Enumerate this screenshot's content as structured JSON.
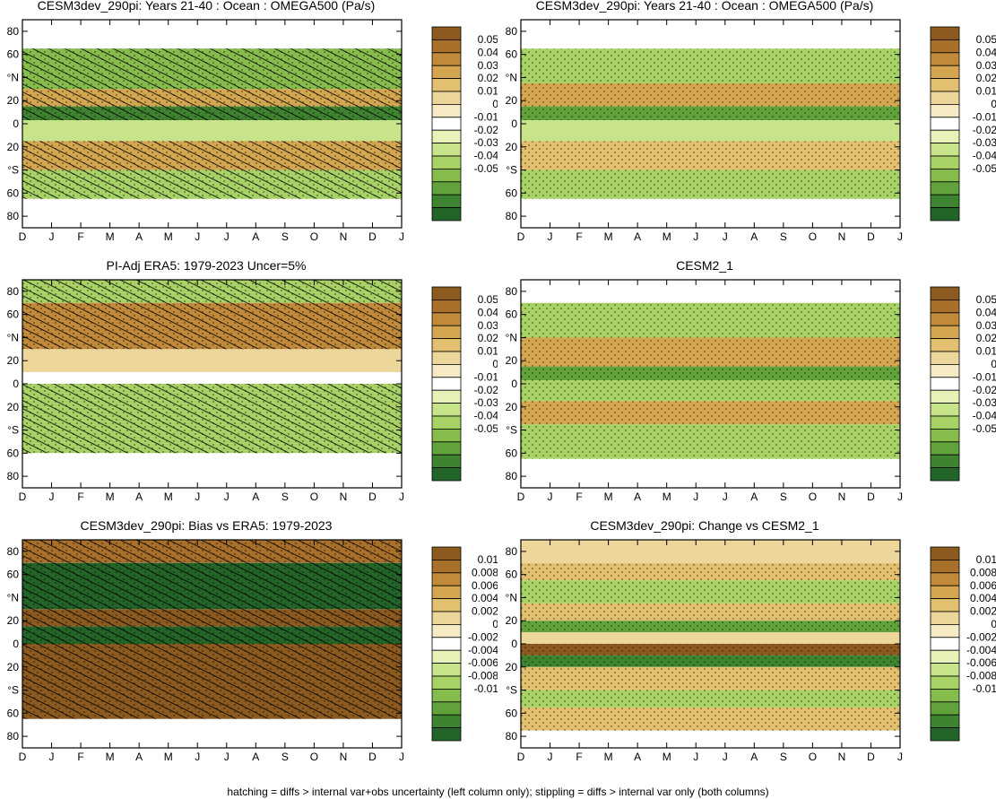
{
  "footnote": "hatching = diffs > internal var+obs uncertainty (left column only); stippling = diffs > internal var only (both columns)",
  "colors": {
    "brown_scale": [
      "#8c5a1e",
      "#a8702a",
      "#c08a3a",
      "#d4a650",
      "#e2c070",
      "#ecd69a",
      "#f5eac4"
    ],
    "zero": "#ffffff",
    "green_scale": [
      "#e6f2b8",
      "#c8e48a",
      "#a8d266",
      "#86bc4c",
      "#62a23a",
      "#3e8430",
      "#236428"
    ]
  },
  "chart_data": [
    {
      "type": "heatmap",
      "title": "CESM3dev_290pi: Years 21-40 : Ocean : OMEGA500 (Pa/s)",
      "x_tick_labels": [
        "D",
        "J",
        "F",
        "M",
        "A",
        "M",
        "J",
        "J",
        "A",
        "S",
        "O",
        "N",
        "D",
        "J"
      ],
      "y_tick_labels": [
        "80",
        "60",
        "°N",
        "20",
        "0",
        "20",
        "°S",
        "60",
        "80"
      ],
      "colorbar_labels": [
        "0.05",
        "0.04",
        "0.03",
        "0.02",
        "0.01",
        "0",
        "-0.01",
        "-0.02",
        "-0.03",
        "-0.04",
        "-0.05"
      ],
      "hatching": true,
      "bands": [
        {
          "lat": [
            65,
            90
          ],
          "value": 0.0
        },
        {
          "lat": [
            30,
            65
          ],
          "value": -0.025
        },
        {
          "lat": [
            15,
            30
          ],
          "value": 0.025
        },
        {
          "lat": [
            3,
            15
          ],
          "value": -0.04
        },
        {
          "lat": [
            -15,
            3
          ],
          "value": -0.008
        },
        {
          "lat": [
            -40,
            -15
          ],
          "value": 0.025
        },
        {
          "lat": [
            -65,
            -40
          ],
          "value": -0.02
        },
        {
          "lat": [
            -90,
            -65
          ],
          "value": 0.0
        }
      ]
    },
    {
      "type": "heatmap",
      "title": "CESM3dev_290pi: Years 21-40 : Ocean : OMEGA500 (Pa/s)",
      "x_tick_labels": [
        "D",
        "J",
        "F",
        "M",
        "A",
        "M",
        "J",
        "J",
        "A",
        "S",
        "O",
        "N",
        "D",
        "J"
      ],
      "y_tick_labels": [
        "80",
        "60",
        "°N",
        "20",
        "0",
        "20",
        "°S",
        "60",
        "80"
      ],
      "colorbar_labels": [
        "0.05",
        "0.04",
        "0.03",
        "0.02",
        "0.01",
        "0",
        "-0.01",
        "-0.02",
        "-0.03",
        "-0.04",
        "-0.05"
      ],
      "hatching": false,
      "bands": [
        {
          "lat": [
            65,
            90
          ],
          "value": 0.0
        },
        {
          "lat": [
            35,
            65
          ],
          "value": -0.02
        },
        {
          "lat": [
            15,
            35
          ],
          "value": 0.025
        },
        {
          "lat": [
            3,
            15
          ],
          "value": -0.035
        },
        {
          "lat": [
            -15,
            3
          ],
          "value": -0.01
        },
        {
          "lat": [
            -40,
            -15
          ],
          "value": 0.02
        },
        {
          "lat": [
            -65,
            -40
          ],
          "value": -0.02
        },
        {
          "lat": [
            -90,
            -65
          ],
          "value": 0.0
        }
      ]
    },
    {
      "type": "heatmap",
      "title": "PI-Adj ERA5: 1979-2023 Uncer=5%",
      "x_tick_labels": [
        "D",
        "J",
        "F",
        "M",
        "A",
        "M",
        "J",
        "J",
        "A",
        "S",
        "O",
        "N",
        "D",
        "J"
      ],
      "y_tick_labels": [
        "80",
        "60",
        "°N",
        "20",
        "0",
        "20",
        "°S",
        "60",
        "80"
      ],
      "colorbar_labels": [
        "0.05",
        "0.04",
        "0.03",
        "0.02",
        "0.01",
        "0",
        "-0.01",
        "-0.02",
        "-0.03",
        "-0.04",
        "-0.05"
      ],
      "hatching": true,
      "bands": [
        {
          "lat": [
            70,
            90
          ],
          "value": -0.015
        },
        {
          "lat": [
            30,
            70
          ],
          "value": 0.03
        },
        {
          "lat": [
            10,
            30
          ],
          "value": 0.01
        },
        {
          "lat": [
            0,
            10
          ],
          "value": 0.0
        },
        {
          "lat": [
            -60,
            0
          ],
          "value": -0.015
        },
        {
          "lat": [
            -90,
            -60
          ],
          "value": 0.0
        }
      ]
    },
    {
      "type": "heatmap",
      "title": "CESM2_1",
      "x_tick_labels": [
        "D",
        "J",
        "F",
        "M",
        "A",
        "M",
        "J",
        "J",
        "A",
        "S",
        "O",
        "N",
        "D",
        "J"
      ],
      "y_tick_labels": [
        "80",
        "60",
        "°N",
        "20",
        "0",
        "20",
        "°S",
        "60",
        "80"
      ],
      "colorbar_labels": [
        "0.05",
        "0.04",
        "0.03",
        "0.02",
        "0.01",
        "0",
        "-0.01",
        "-0.02",
        "-0.03",
        "-0.04",
        "-0.05"
      ],
      "hatching": false,
      "bands": [
        {
          "lat": [
            70,
            90
          ],
          "value": 0.0
        },
        {
          "lat": [
            40,
            70
          ],
          "value": -0.02
        },
        {
          "lat": [
            15,
            40
          ],
          "value": 0.025
        },
        {
          "lat": [
            3,
            15
          ],
          "value": -0.035
        },
        {
          "lat": [
            -15,
            3
          ],
          "value": -0.015
        },
        {
          "lat": [
            -35,
            -15
          ],
          "value": 0.025
        },
        {
          "lat": [
            -65,
            -35
          ],
          "value": -0.015
        },
        {
          "lat": [
            -90,
            -65
          ],
          "value": 0.0
        }
      ]
    },
    {
      "type": "heatmap",
      "title": "CESM3dev_290pi: Bias vs ERA5: 1979-2023",
      "x_tick_labels": [
        "D",
        "J",
        "F",
        "M",
        "A",
        "M",
        "J",
        "J",
        "A",
        "S",
        "O",
        "N",
        "D",
        "J"
      ],
      "y_tick_labels": [
        "80",
        "60",
        "°N",
        "20",
        "0",
        "20",
        "°S",
        "60",
        "80"
      ],
      "colorbar_labels": [
        "0.01",
        "0.008",
        "0.006",
        "0.004",
        "0.002",
        "0",
        "-0.002",
        "-0.004",
        "-0.006",
        "-0.008",
        "-0.01"
      ],
      "hatching": true,
      "bands": [
        {
          "lat": [
            70,
            90
          ],
          "value": 0.008
        },
        {
          "lat": [
            30,
            70
          ],
          "value": -0.01
        },
        {
          "lat": [
            15,
            30
          ],
          "value": 0.009
        },
        {
          "lat": [
            0,
            15
          ],
          "value": -0.01
        },
        {
          "lat": [
            -65,
            0
          ],
          "value": 0.009
        },
        {
          "lat": [
            -90,
            -65
          ],
          "value": 0.0
        }
      ]
    },
    {
      "type": "heatmap",
      "title": "CESM3dev_290pi: Change vs CESM2_1",
      "x_tick_labels": [
        "D",
        "J",
        "F",
        "M",
        "A",
        "M",
        "J",
        "J",
        "A",
        "S",
        "O",
        "N",
        "D",
        "J"
      ],
      "y_tick_labels": [
        "80",
        "60",
        "°N",
        "20",
        "0",
        "20",
        "°S",
        "60",
        "80"
      ],
      "colorbar_labels": [
        "0.01",
        "0.008",
        "0.006",
        "0.004",
        "0.002",
        "0",
        "-0.002",
        "-0.004",
        "-0.006",
        "-0.008",
        "-0.01"
      ],
      "hatching": false,
      "bands": [
        {
          "lat": [
            70,
            90
          ],
          "value": 0.002
        },
        {
          "lat": [
            55,
            70
          ],
          "value": 0.004
        },
        {
          "lat": [
            35,
            55
          ],
          "value": -0.004
        },
        {
          "lat": [
            20,
            35
          ],
          "value": 0.003
        },
        {
          "lat": [
            10,
            20
          ],
          "value": -0.006
        },
        {
          "lat": [
            0,
            10
          ],
          "value": 0.002
        },
        {
          "lat": [
            -10,
            0
          ],
          "value": 0.009
        },
        {
          "lat": [
            -20,
            -10
          ],
          "value": -0.008
        },
        {
          "lat": [
            -40,
            -20
          ],
          "value": 0.003
        },
        {
          "lat": [
            -55,
            -40
          ],
          "value": -0.004
        },
        {
          "lat": [
            -75,
            -55
          ],
          "value": 0.004
        },
        {
          "lat": [
            -90,
            -75
          ],
          "value": 0.0
        }
      ]
    }
  ]
}
